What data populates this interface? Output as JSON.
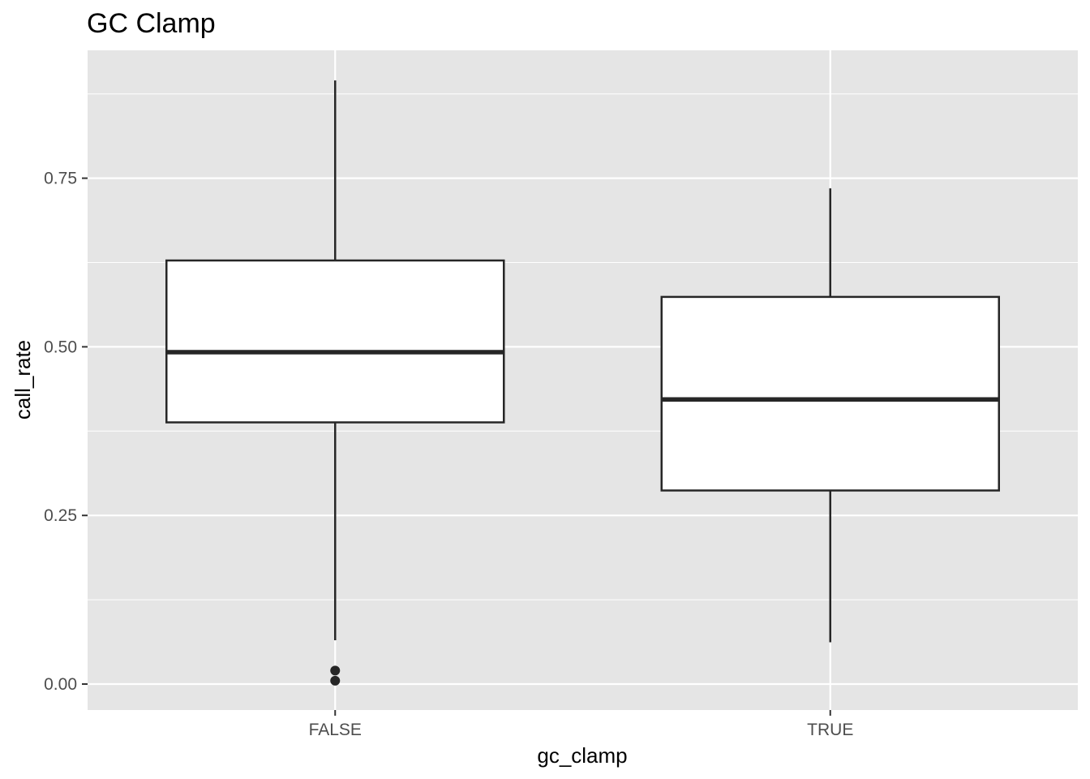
{
  "chart_data": {
    "type": "box",
    "title": "GC Clamp",
    "xlabel": "gc_clamp",
    "ylabel": "call_rate",
    "categories": [
      "FALSE",
      "TRUE"
    ],
    "boxes": [
      {
        "category": "FALSE",
        "whisker_low": 0.065,
        "q1": 0.388,
        "median": 0.492,
        "q3": 0.628,
        "whisker_high": 0.895,
        "outliers": [
          0.02,
          0.005
        ]
      },
      {
        "category": "TRUE",
        "whisker_low": 0.062,
        "q1": 0.287,
        "median": 0.422,
        "q3": 0.574,
        "whisker_high": 0.735,
        "outliers": []
      }
    ],
    "yticks": [
      0.0,
      0.25,
      0.5,
      0.75
    ],
    "ytick_labels": [
      "0.00",
      "0.25",
      "0.50",
      "0.75"
    ],
    "ylim": [
      -0.04,
      0.94
    ],
    "grid": true,
    "colors": {
      "panel": "#e5e5e5",
      "grid": "#ffffff",
      "box_fill": "#ffffff",
      "box_line": "#262626",
      "tick_text": "#4d4d4d"
    }
  }
}
